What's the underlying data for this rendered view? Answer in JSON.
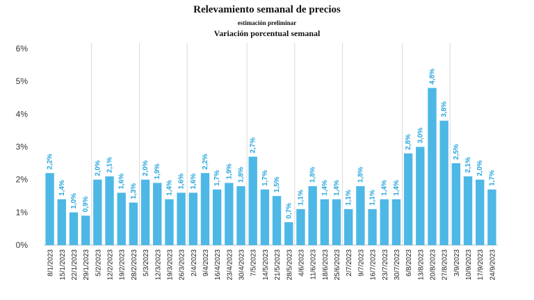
{
  "chart_data": {
    "type": "bar",
    "title": "Relevamiento semanal de precios",
    "subtitle": "estimación preliminar",
    "subtitle2": "Variación porcentual semanal",
    "xlabel": "",
    "ylabel": "",
    "ylim": [
      0,
      6
    ],
    "yticks": [
      "0%",
      "1%",
      "2%",
      "3%",
      "4%",
      "5%",
      "6%"
    ],
    "grid": "vertical-monthly",
    "bar_color": "#4db8e6",
    "label_color": "#2aa8de",
    "categories": [
      "8/1/2023",
      "15/1/2023",
      "22/1/2023",
      "29/1/2023",
      "5/2/2023",
      "12/2/2023",
      "19/2/2023",
      "28/2/2023",
      "5/3/2023",
      "12/3/2023",
      "19/3/2023",
      "26/3/2023",
      "2/4/2023",
      "9/4/2023",
      "16/4/2023",
      "23/4/2023",
      "30/4/2023",
      "7/5/2023",
      "14/5/2023",
      "21/5/2023",
      "28/5/2023",
      "4/6/2023",
      "11/6/2023",
      "18/6/2023",
      "25/6/2023",
      "2/7/2023",
      "9/7/2023",
      "16/7/2023",
      "23/7/2023",
      "30/7/2023",
      "6/8/2023",
      "13/8/2023",
      "20/8/2023",
      "27/8/2023",
      "3/9/2023",
      "10/9/2023",
      "17/9/2023",
      "24/9/2023"
    ],
    "values": [
      2.2,
      1.4,
      1.0,
      0.9,
      2.0,
      2.1,
      1.6,
      1.3,
      2.0,
      1.9,
      1.4,
      1.6,
      1.6,
      2.2,
      1.7,
      1.9,
      1.8,
      2.7,
      1.7,
      1.5,
      0.7,
      1.1,
      1.8,
      1.4,
      1.4,
      1.1,
      1.8,
      1.1,
      1.4,
      1.4,
      2.8,
      3.0,
      4.8,
      3.8,
      2.5,
      2.1,
      2.0,
      1.7
    ],
    "data_labels": [
      "2,2%",
      "1,4%",
      "1,0%",
      "0,9%",
      "2,0%",
      "2,1%",
      "1,6%",
      "1,3%",
      "2,0%",
      "1,9%",
      "1,4%",
      "1,6%",
      "1,6%",
      "2,2%",
      "1,7%",
      "1,9%",
      "1,8%",
      "2,7%",
      "1,7%",
      "1,5%",
      "0,7%",
      "1,1%",
      "1,8%",
      "1,4%",
      "1,4%",
      "1,1%",
      "1,8%",
      "1,1%",
      "1,4%",
      "1,4%",
      "2,8%",
      "3,0%",
      "4,8%",
      "3,8%",
      "2,5%",
      "2,1%",
      "2,0%",
      "1,7%"
    ]
  }
}
